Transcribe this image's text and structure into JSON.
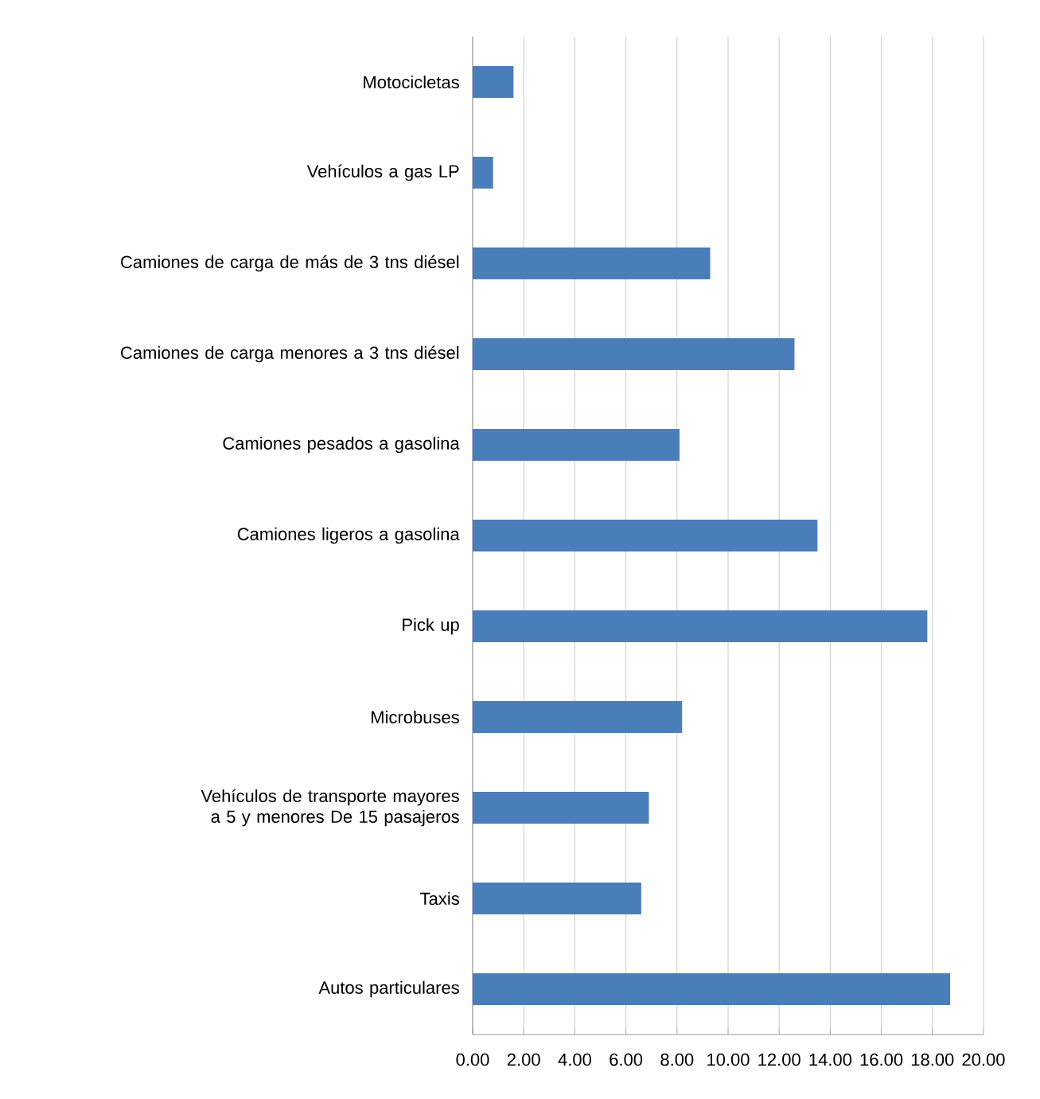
{
  "chart_data": {
    "type": "bar",
    "orientation": "horizontal",
    "categories": [
      "Motocicletas",
      "Vehículos a gas LP",
      "Camiones de carga de más de 3 tns diésel",
      "Camiones de carga menores a 3 tns diésel",
      "Camiones pesados a gasolina",
      "Camiones ligeros a gasolina",
      "Pick up",
      "Microbuses",
      "Vehículos de transporte mayores a 5 y menores De 15 pasajeros",
      "Taxis",
      "Autos particulares"
    ],
    "values": [
      1.6,
      0.8,
      9.3,
      12.6,
      8.1,
      13.5,
      17.8,
      8.2,
      6.9,
      6.6,
      18.7
    ],
    "color": "#4a7ebb",
    "xlim": [
      0,
      20
    ],
    "xticks": [
      {
        "value": 0,
        "label": "0.00"
      },
      {
        "value": 2,
        "label": "2.00"
      },
      {
        "value": 4,
        "label": "4.00"
      },
      {
        "value": 6,
        "label": "6.00"
      },
      {
        "value": 8,
        "label": "8.00"
      },
      {
        "value": 10,
        "label": "10.00"
      },
      {
        "value": 12,
        "label": "12.00"
      },
      {
        "value": 14,
        "label": "14.00"
      },
      {
        "value": 16,
        "label": "16.00"
      },
      {
        "value": 18,
        "label": "18.00"
      },
      {
        "value": 20,
        "label": "20.00"
      }
    ],
    "grid": "x"
  }
}
